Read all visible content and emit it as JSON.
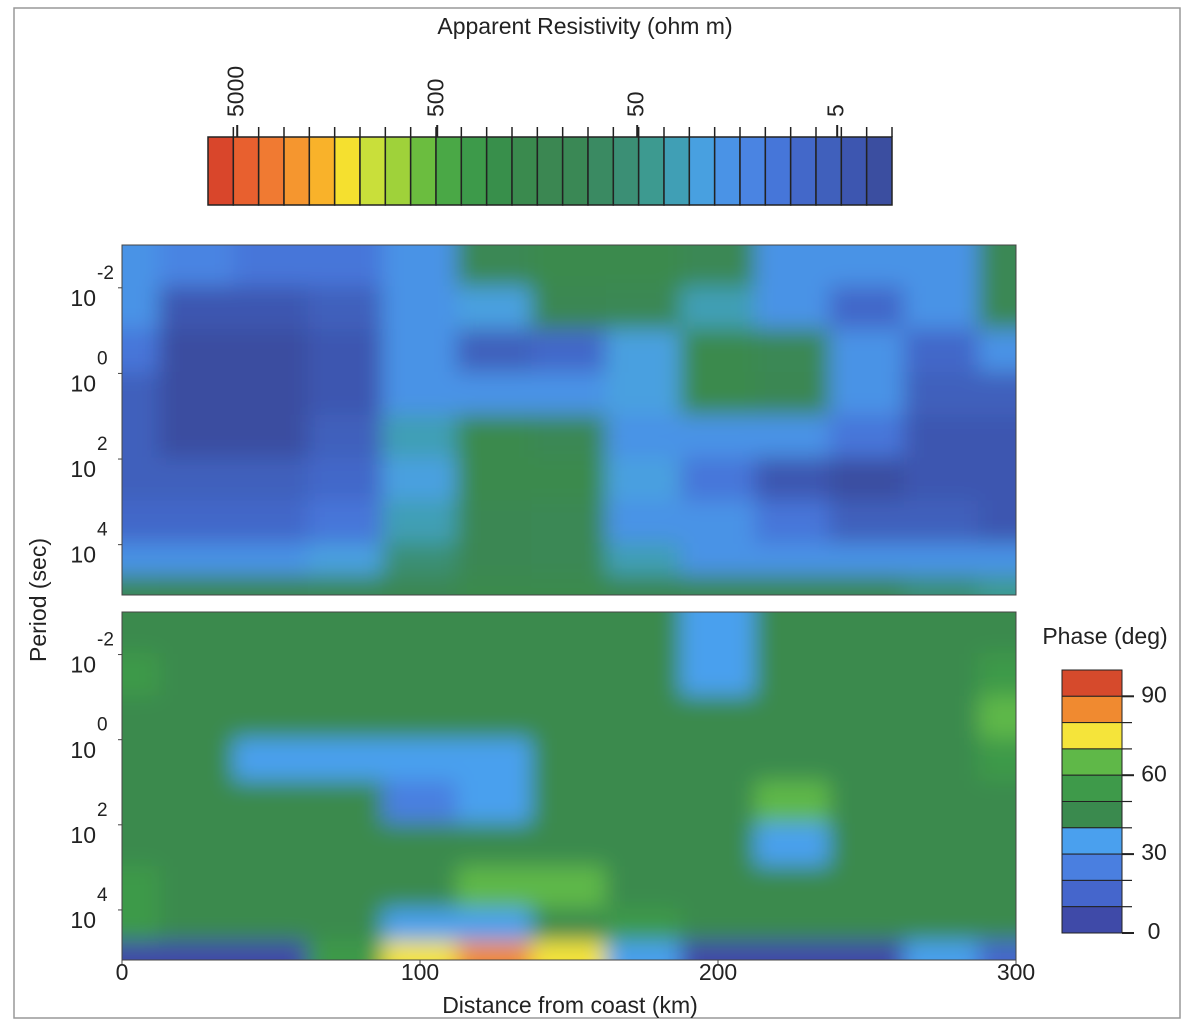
{
  "chart_data": [
    {
      "type": "heatmap",
      "colorbar_title": "Apparent Resistivity (ohm m)",
      "ylabel": "Period (sec)",
      "xlim": [
        0,
        300
      ],
      "log_y": true,
      "ylim": [
        0.001,
        150000
      ],
      "yticks": [
        {
          "value": 0.01,
          "label": "10",
          "exponent": "-2"
        },
        {
          "value": 1,
          "label": "10",
          "exponent": "0"
        },
        {
          "value": 100,
          "label": "10",
          "exponent": "2"
        },
        {
          "value": 10000,
          "label": "10",
          "exponent": "4"
        }
      ],
      "x": [
        0,
        25,
        50,
        75,
        100,
        125,
        150,
        175,
        200,
        225,
        250,
        275,
        300
      ],
      "y": [
        0.003,
        0.03,
        0.3,
        3,
        30,
        300,
        3000,
        30000,
        100000
      ],
      "z": [
        [
          20,
          15,
          10,
          10,
          20,
          100,
          200,
          200,
          100,
          20,
          20,
          20,
          100
        ],
        [
          20,
          4,
          4,
          5,
          20,
          25,
          150,
          100,
          30,
          20,
          8,
          20,
          100
        ],
        [
          10,
          3,
          3,
          4,
          20,
          6,
          8,
          25,
          200,
          100,
          20,
          8,
          20
        ],
        [
          5,
          3,
          3,
          4,
          20,
          20,
          20,
          25,
          200,
          150,
          20,
          5,
          5
        ],
        [
          5,
          3,
          3,
          5,
          30,
          200,
          100,
          20,
          20,
          20,
          10,
          4,
          4
        ],
        [
          5,
          5,
          5,
          8,
          25,
          200,
          200,
          25,
          10,
          4,
          3,
          4,
          4
        ],
        [
          8,
          8,
          8,
          10,
          30,
          150,
          100,
          20,
          20,
          10,
          5,
          5,
          4
        ],
        [
          20,
          20,
          20,
          25,
          60,
          150,
          100,
          30,
          20,
          20,
          20,
          20,
          20
        ],
        [
          100,
          150,
          150,
          100,
          150,
          200,
          200,
          150,
          100,
          100,
          100,
          60,
          40
        ]
      ],
      "color_scale": {
        "log": true,
        "lim": [
          7000,
          2.66
        ],
        "ticks": [
          5000,
          500,
          50,
          5
        ],
        "colors": [
          "#d9462b",
          "#e8602f",
          "#f07a32",
          "#f5962f",
          "#f9b22a",
          "#f5e02f",
          "#c9df3a",
          "#9fd23a",
          "#6bbd3f",
          "#4aa846",
          "#3d9a4a",
          "#388f4b",
          "#3a8a4e",
          "#3b8752",
          "#3a8855",
          "#3a8a62",
          "#3b8f75",
          "#3d9a90",
          "#409fb5",
          "#48a0e0",
          "#4a93e6",
          "#4a84e2",
          "#4676d9",
          "#4368c9",
          "#4060bc",
          "#3d56b0",
          "#3b4ea0"
        ]
      }
    },
    {
      "type": "heatmap",
      "colorbar_title": "Phase (deg)",
      "xlabel": "Distance from coast (km)",
      "xlim": [
        0,
        300
      ],
      "xticks": [
        0,
        100,
        200,
        300
      ],
      "log_y": true,
      "ylim": [
        0.001,
        150000
      ],
      "yticks": [
        {
          "value": 0.01,
          "label": "10",
          "exponent": "-2"
        },
        {
          "value": 1,
          "label": "10",
          "exponent": "0"
        },
        {
          "value": 100,
          "label": "10",
          "exponent": "2"
        },
        {
          "value": 10000,
          "label": "10",
          "exponent": "4"
        }
      ],
      "x": [
        0,
        25,
        50,
        75,
        100,
        125,
        150,
        175,
        200,
        225,
        250,
        275,
        300
      ],
      "y": [
        0.003,
        0.03,
        0.3,
        3,
        30,
        300,
        3000,
        30000,
        100000
      ],
      "z": [
        [
          50,
          50,
          50,
          50,
          50,
          50,
          50,
          50,
          35,
          50,
          50,
          50,
          50
        ],
        [
          55,
          50,
          50,
          50,
          50,
          50,
          50,
          50,
          35,
          50,
          50,
          50,
          55
        ],
        [
          50,
          50,
          50,
          50,
          50,
          50,
          50,
          50,
          50,
          50,
          50,
          50,
          65
        ],
        [
          50,
          50,
          35,
          35,
          35,
          35,
          50,
          50,
          50,
          50,
          50,
          50,
          60
        ],
        [
          50,
          50,
          50,
          50,
          28,
          35,
          50,
          50,
          50,
          62,
          50,
          50,
          50
        ],
        [
          50,
          50,
          50,
          50,
          50,
          50,
          50,
          50,
          50,
          35,
          50,
          50,
          50
        ],
        [
          55,
          50,
          50,
          50,
          50,
          62,
          62,
          50,
          50,
          50,
          50,
          50,
          50
        ],
        [
          58,
          50,
          45,
          50,
          40,
          35,
          50,
          55,
          50,
          50,
          50,
          50,
          45
        ],
        [
          10,
          10,
          10,
          55,
          75,
          85,
          75,
          40,
          10,
          10,
          10,
          40,
          15
        ]
      ],
      "color_scale": {
        "log": false,
        "lim": [
          100,
          0
        ],
        "ticks": [
          90,
          60,
          30,
          0
        ],
        "colors": [
          "#d64a2c",
          "#f08a30",
          "#f5e43a",
          "#5fb848",
          "#3e9a4a",
          "#3a8a4e",
          "#4aa0ee",
          "#4a7fe0",
          "#4566cc",
          "#3f4aa8"
        ]
      }
    }
  ]
}
